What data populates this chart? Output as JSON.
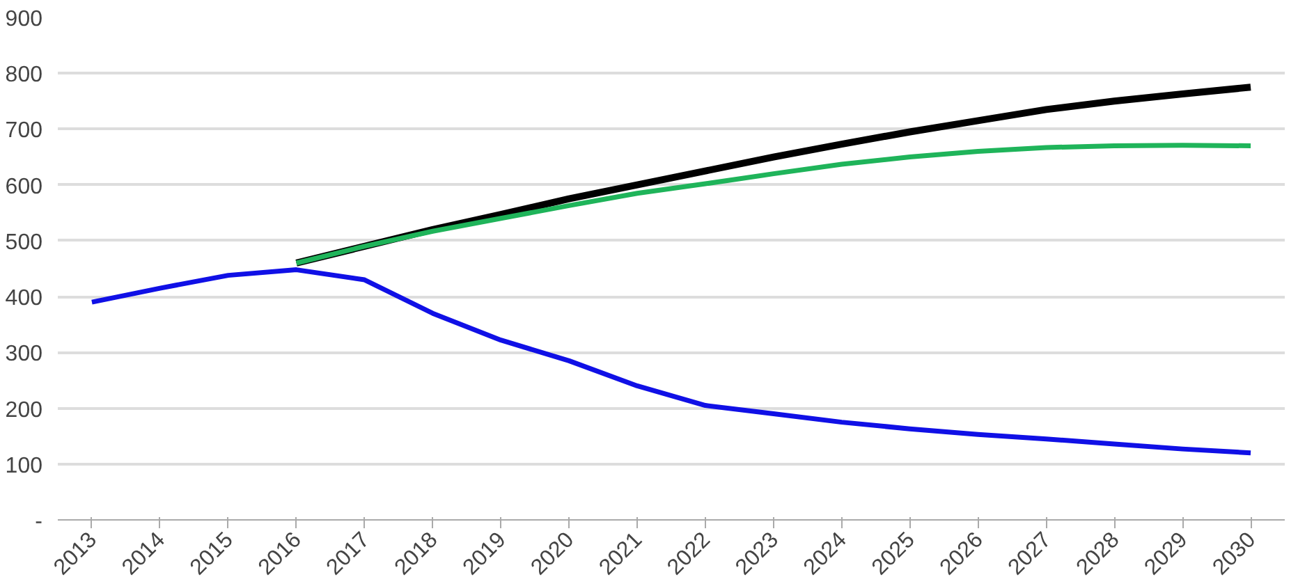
{
  "chart_data": {
    "type": "line",
    "categories": [
      "2013",
      "2014",
      "2015",
      "2016",
      "2017",
      "2018",
      "2019",
      "2020",
      "2021",
      "2022",
      "2023",
      "2024",
      "2025",
      "2026",
      "2027",
      "2028",
      "2029",
      "2030"
    ],
    "series": [
      {
        "color": "#000000",
        "values": [
          null,
          null,
          null,
          460,
          490,
          520,
          547,
          575,
          600,
          625,
          650,
          673,
          695,
          715,
          735,
          750,
          763,
          775
        ]
      },
      {
        "color": "#1fb45a",
        "values": [
          null,
          null,
          null,
          460,
          490,
          517,
          540,
          563,
          585,
          602,
          620,
          637,
          650,
          660,
          667,
          670,
          671,
          670
        ]
      },
      {
        "color": "#1010e6",
        "values": [
          390,
          415,
          438,
          448,
          430,
          370,
          322,
          285,
          240,
          205,
          190,
          175,
          163,
          153,
          145,
          136,
          127,
          120
        ]
      }
    ],
    "ylim": [
      0,
      900
    ],
    "yticks": [
      {
        "value": 0,
        "label": "-"
      },
      100,
      200,
      300,
      400,
      500,
      600,
      700,
      800,
      900
    ],
    "grid": "y",
    "marker": "none",
    "line_style": "solid"
  }
}
